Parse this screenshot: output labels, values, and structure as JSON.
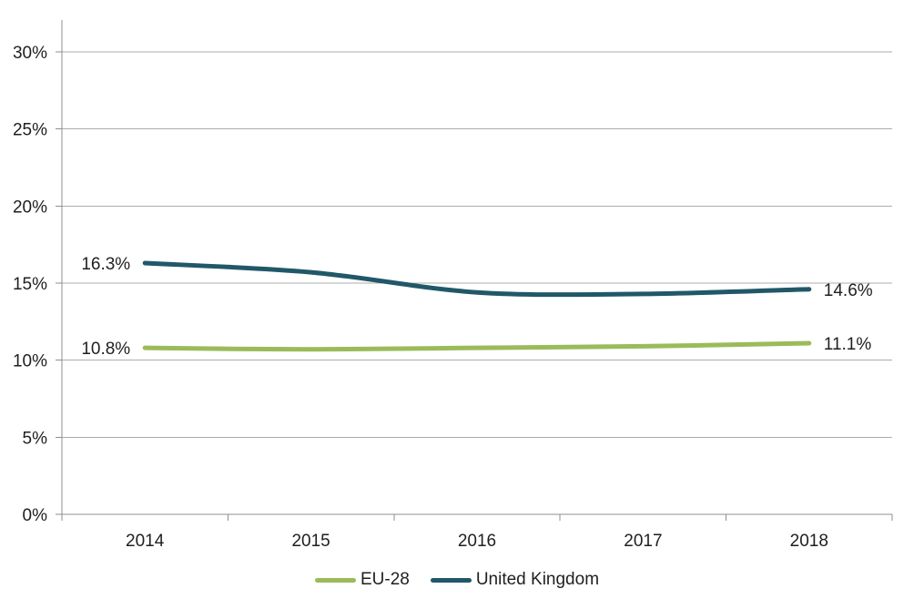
{
  "chart_data": {
    "type": "line",
    "title": "",
    "xlabel": "",
    "ylabel": "",
    "categories": [
      "2014",
      "2015",
      "2016",
      "2017",
      "2018"
    ],
    "series": [
      {
        "name": "EU-28",
        "color": "#9BBB59",
        "values": [
          10.8,
          10.7,
          10.8,
          10.9,
          11.1
        ],
        "first_label": "10.8%",
        "last_label": "11.1%"
      },
      {
        "name": "United Kingdom",
        "color": "#215868",
        "values": [
          16.3,
          15.7,
          14.4,
          14.3,
          14.6
        ],
        "first_label": "16.3%",
        "last_label": "14.6%"
      }
    ],
    "ylim": [
      0,
      30
    ],
    "yticks": [
      {
        "value": 0,
        "label": "0%"
      },
      {
        "value": 5,
        "label": "5%"
      },
      {
        "value": 10,
        "label": "10%"
      },
      {
        "value": 15,
        "label": "15%"
      },
      {
        "value": 20,
        "label": "20%"
      },
      {
        "value": 25,
        "label": "25%"
      },
      {
        "value": 30,
        "label": "30%"
      }
    ],
    "grid": true,
    "legend_position": "bottom",
    "colors": {
      "grid": "#ACACAC",
      "axis": "#8F8F8F",
      "text": "#1F1F1F"
    }
  }
}
